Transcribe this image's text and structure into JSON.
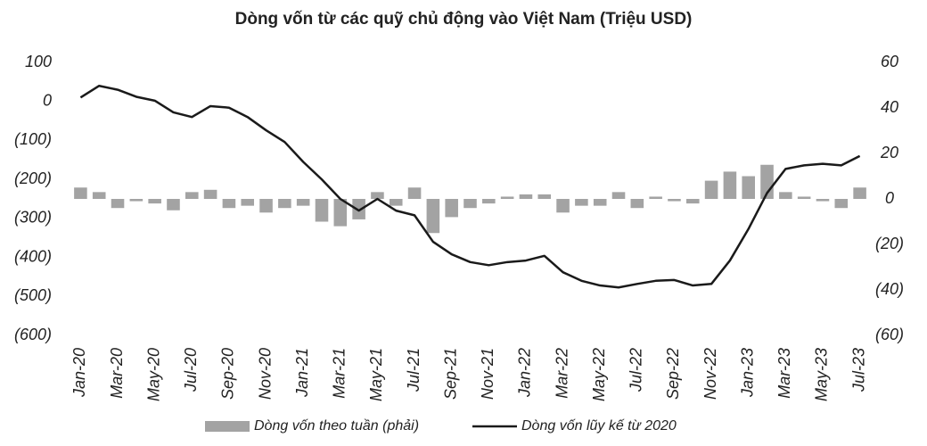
{
  "chart_data": {
    "type": "bar-line",
    "title": "Dòng vốn từ các quỹ chủ động vào Việt Nam (Triệu USD)",
    "categories": [
      "Jan-20",
      null,
      "Mar-20",
      null,
      "May-20",
      null,
      "Jul-20",
      null,
      "Sep-20",
      null,
      "Nov-20",
      null,
      "Jan-21",
      null,
      "Mar-21",
      null,
      "May-21",
      null,
      "Jul-21",
      null,
      "Sep-21",
      null,
      "Nov-21",
      null,
      "Jan-22",
      null,
      "Mar-22",
      null,
      "May-22",
      null,
      "Jul-22",
      null,
      "Sep-22",
      null,
      "Nov-22",
      null,
      "Jan-23",
      null,
      "Mar-23",
      null,
      "May-23",
      null,
      "Jul-23"
    ],
    "series": [
      {
        "name": "Dòng vốn theo tuần (phải)",
        "type": "bar",
        "axis": "y2",
        "color": "#a3a3a3",
        "values": [
          5,
          3,
          -4,
          -1,
          -2,
          -5,
          3,
          4,
          -4,
          -3,
          -6,
          -4,
          -3,
          -10,
          -12,
          -9,
          3,
          -3,
          5,
          -15,
          -8,
          -4,
          -2,
          1,
          2,
          2,
          -6,
          -3,
          -3,
          3,
          -4,
          1,
          -1,
          -2,
          8,
          12,
          10,
          15,
          3,
          1,
          -1,
          -4,
          5
        ]
      },
      {
        "name": "Dòng vốn lũy kế từ 2020",
        "type": "line",
        "axis": "y",
        "color": "#1a1a1a",
        "values": [
          10,
          40,
          30,
          12,
          2,
          -28,
          -40,
          -12,
          -16,
          -40,
          -74,
          -104,
          -155,
          -200,
          -250,
          -280,
          -250,
          -280,
          -292,
          -360,
          -392,
          -412,
          -420,
          -412,
          -408,
          -396,
          -438,
          -460,
          -472,
          -477,
          -468,
          -460,
          -458,
          -472,
          -468,
          -408,
          -327,
          -235,
          -173,
          -164,
          -160,
          -164,
          -140
        ]
      }
    ],
    "ylim": [
      -600,
      100
    ],
    "yticks": [
      100,
      0,
      {
        "value": -100,
        "label": "(100)"
      },
      {
        "value": -200,
        "label": "(200)"
      },
      {
        "value": -300,
        "label": "(300)"
      },
      {
        "value": -400,
        "label": "(400)"
      },
      {
        "value": -500,
        "label": "(500)"
      },
      {
        "value": -600,
        "label": "(600)"
      }
    ],
    "y2lim": [
      -60,
      60
    ],
    "y2ticks": [
      60,
      40,
      20,
      0,
      {
        "value": -20,
        "label": "(20)"
      },
      {
        "value": -40,
        "label": "(40)"
      },
      {
        "value": -60,
        "label": "(60)"
      }
    ]
  }
}
